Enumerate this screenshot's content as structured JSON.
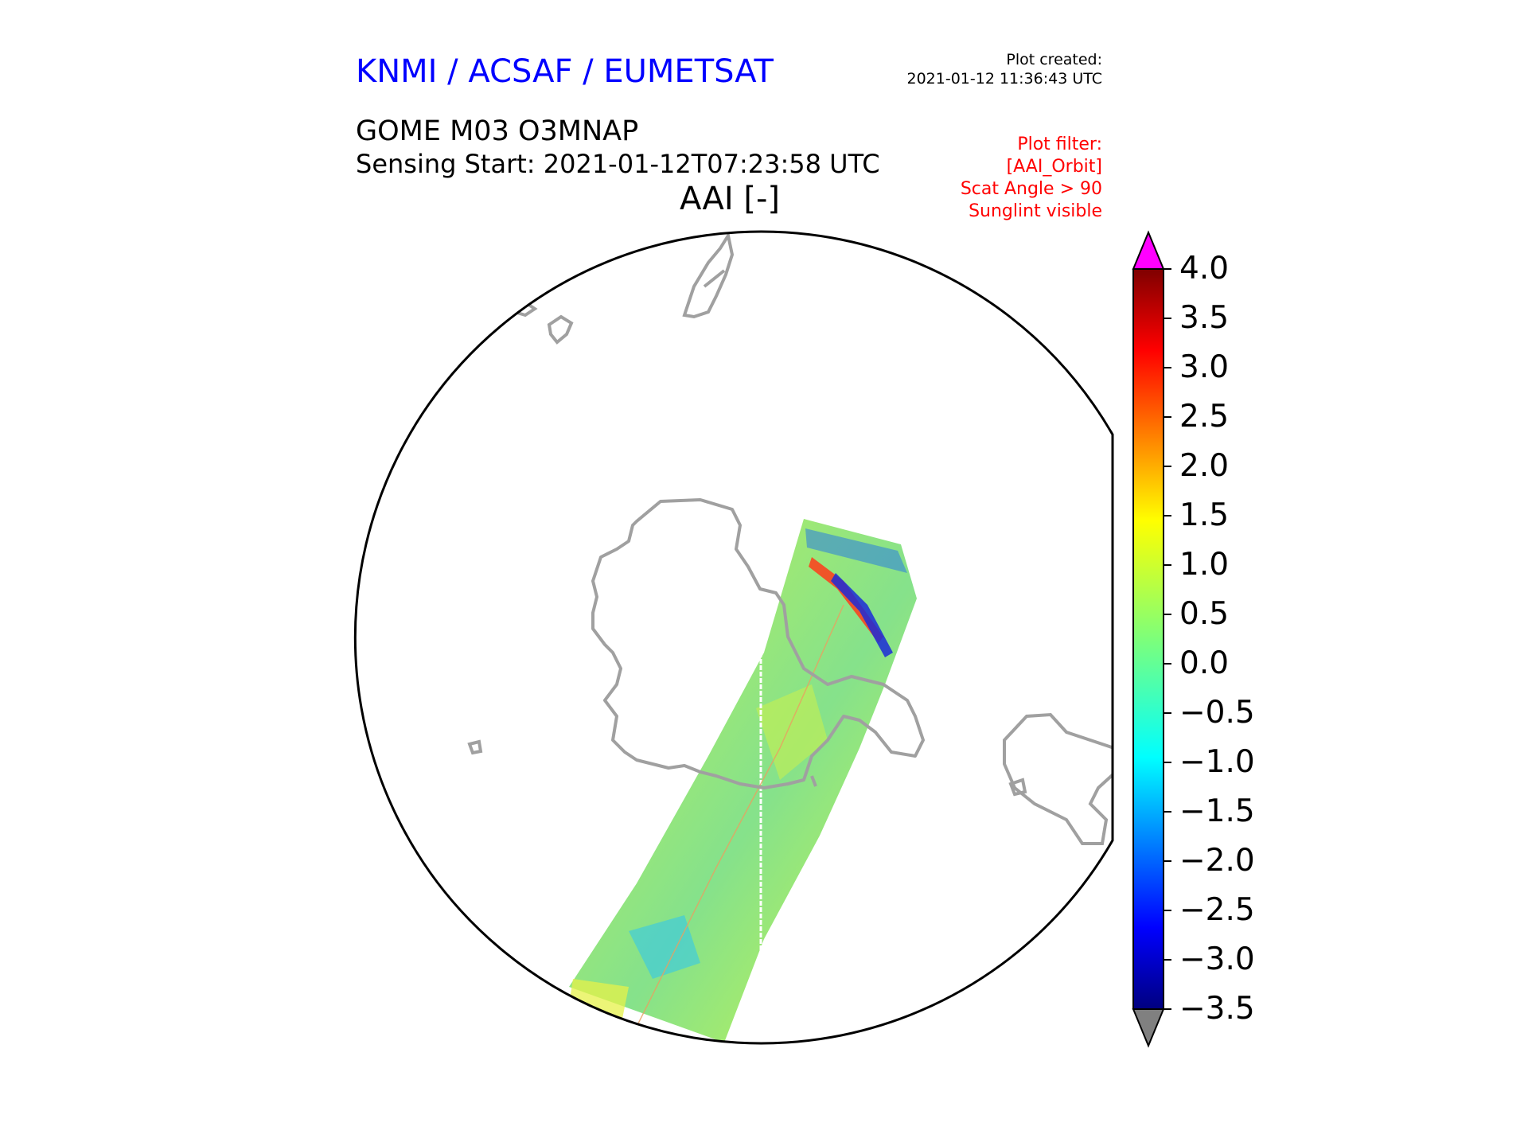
{
  "header": {
    "organization": "KNMI / ACSAF / EUMETSAT",
    "plot_created_label": "Plot created:",
    "plot_created_value": "2021-01-12 11:36:43 UTC",
    "product": "GOME M03 O3MNAP",
    "sensing_start": "Sensing Start: 2021-01-12T07:23:58 UTC",
    "map_title": "AAI [-]"
  },
  "plot_filter": {
    "lines": [
      "Plot filter:",
      "[AAI_Orbit]",
      "Scat Angle > 90",
      "Sunglint visible"
    ]
  },
  "colorbar": {
    "ticks": [
      "4.0",
      "3.5",
      "3.0",
      "2.5",
      "2.0",
      "1.5",
      "1.0",
      "0.5",
      "0.0",
      "−0.5",
      "−1.0",
      "−1.5",
      "−2.0",
      "−2.5",
      "−3.0",
      "−3.5"
    ],
    "min": -3.5,
    "max": 4.0,
    "over_color": "#ff00ff",
    "under_color": "#808080",
    "colormap": "jet"
  },
  "map": {
    "projection": "polar stereographic (south pole)",
    "coastline_color": "#a0a0a0",
    "swath_dominant_color": "#8fe86a"
  },
  "colors": {
    "organization_text": "#0000ff",
    "filter_text": "#ff0000",
    "body_text": "#000000"
  }
}
